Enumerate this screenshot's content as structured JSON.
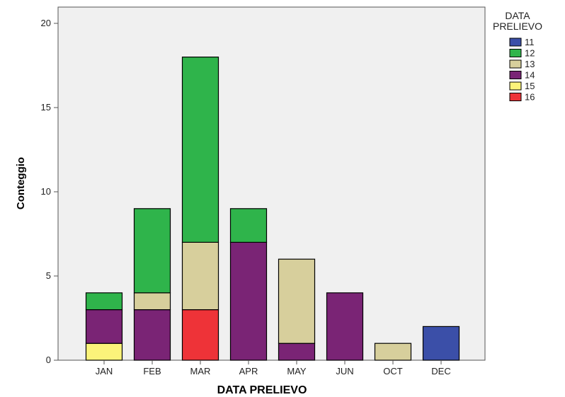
{
  "chart_data": {
    "type": "bar",
    "stacked": true,
    "xlabel": "DATA PRELIEVO",
    "ylabel": "Conteggio",
    "ylim": [
      0,
      20
    ],
    "yticks": [
      "0",
      "5",
      "10",
      "15",
      "20"
    ],
    "grid": false,
    "legend_title": "DATA PRELIEVO",
    "legend_position": "top-right",
    "categories": [
      "JAN",
      "FEB",
      "MAR",
      "APR",
      "MAY",
      "JUN",
      "OCT",
      "DEC"
    ],
    "series": [
      {
        "name": "16",
        "color": "#ee3338",
        "values": [
          0,
          0,
          3,
          0,
          0,
          0,
          0,
          0
        ]
      },
      {
        "name": "15",
        "color": "#fbf37a",
        "values": [
          1,
          0,
          0,
          0,
          0,
          0,
          0,
          0
        ]
      },
      {
        "name": "14",
        "color": "#7a2475",
        "values": [
          2,
          3,
          0,
          7,
          1,
          4,
          0,
          0
        ]
      },
      {
        "name": "13",
        "color": "#d7cf9c",
        "values": [
          0,
          1,
          4,
          0,
          5,
          0,
          1,
          0
        ]
      },
      {
        "name": "12",
        "color": "#2fb44b",
        "values": [
          1,
          5,
          11,
          2,
          0,
          0,
          0,
          0
        ]
      },
      {
        "name": "11",
        "color": "#3b4fa8",
        "values": [
          0,
          0,
          0,
          0,
          0,
          0,
          0,
          2
        ]
      }
    ],
    "legend_order": [
      "11",
      "12",
      "13",
      "14",
      "15",
      "16"
    ]
  }
}
